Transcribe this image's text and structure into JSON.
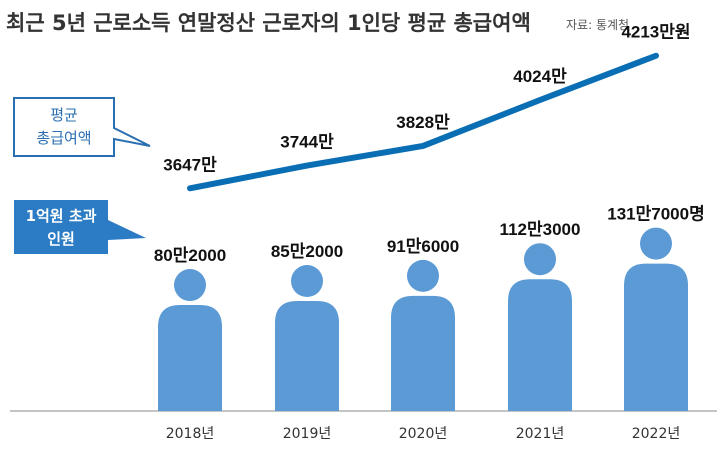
{
  "title": "최근 5년 근로소득 연말정산 근로자의 1인당 평균 총급여액",
  "source": "자료: 통계청",
  "callouts": {
    "salary_line1": "평균",
    "salary_line2": "총급여액",
    "earners_line1": "1억원 초과",
    "earners_line2": "인원"
  },
  "colors": {
    "line": "#0a6eb4",
    "bars": "#5b9ad5",
    "callout_border": "#2b6fb2",
    "axis": "#888888"
  },
  "chart_data": {
    "type": "bar",
    "categories": [
      "2018년",
      "2019년",
      "2020년",
      "2021년",
      "2022년"
    ],
    "series": [
      {
        "type": "bar",
        "values": [
          802000,
          852000,
          916000,
          1123000,
          1317000
        ],
        "labels": [
          "80만2000",
          "85만2000",
          "91만6000",
          "112만3000",
          "131만7000명"
        ]
      },
      {
        "type": "line",
        "values": [
          3647,
          3744,
          3828,
          4024,
          4213
        ],
        "labels": [
          "3647만",
          "3744만",
          "3828만",
          "4024만",
          "4213만원"
        ]
      }
    ]
  }
}
